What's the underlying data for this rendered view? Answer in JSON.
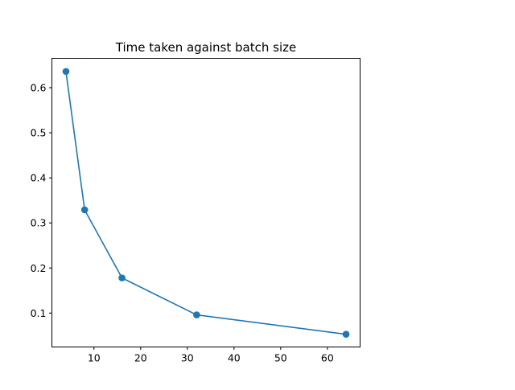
{
  "chart_data": {
    "type": "line",
    "title": "Time taken against batch size",
    "xlabel": "",
    "ylabel": "",
    "x": [
      4,
      8,
      16,
      32,
      64
    ],
    "series": [
      {
        "values": [
          0.636,
          0.329,
          0.178,
          0.096,
          0.053
        ]
      }
    ],
    "xlim": [
      0.99,
      67.01
    ],
    "ylim": [
      0.0248,
      0.6652
    ],
    "xticks": [
      10,
      20,
      30,
      40,
      50,
      60
    ],
    "yticks": [
      0.1,
      0.2,
      0.3,
      0.4,
      0.5,
      0.6
    ],
    "xtick_labels": [
      "10",
      "20",
      "30",
      "40",
      "50",
      "60"
    ],
    "ytick_labels": [
      "0.1",
      "0.2",
      "0.3",
      "0.4",
      "0.5",
      "0.6"
    ],
    "grid": false,
    "legend": "none",
    "marker": "circle",
    "line_color": "#1f77b4"
  }
}
